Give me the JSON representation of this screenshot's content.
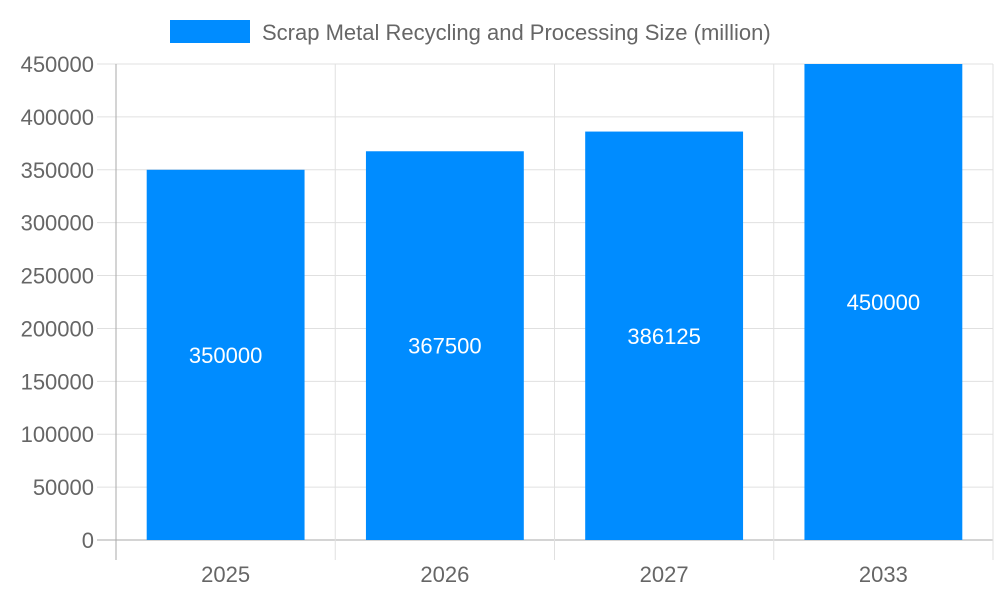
{
  "chart_data": {
    "type": "bar",
    "title": "",
    "xlabel": "",
    "ylabel": "",
    "categories": [
      "2025",
      "2026",
      "2027",
      "2033"
    ],
    "series": [
      {
        "name": "Scrap Metal Recycling and Processing Size (million)",
        "values": [
          350000,
          367500,
          386125,
          450000
        ],
        "color": "#008cff"
      }
    ],
    "data_labels": [
      "350000",
      "367500",
      "386125",
      "450000"
    ],
    "ylim": [
      0,
      450000
    ],
    "yticks": [
      0,
      50000,
      100000,
      150000,
      200000,
      250000,
      300000,
      350000,
      400000,
      450000
    ],
    "grid": true,
    "legend_position": "top"
  }
}
